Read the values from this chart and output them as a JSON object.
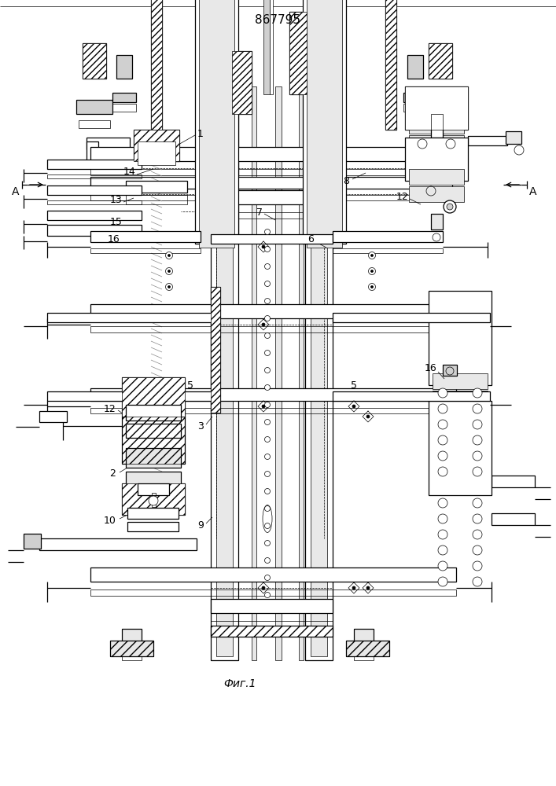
{
  "title": "867795",
  "caption": "Фиг.1",
  "bg_color": "#ffffff",
  "figsize": [
    7.07,
    10.0
  ],
  "dpi": 100,
  "title_fs": 11,
  "caption_fs": 10,
  "lw_thin": 0.5,
  "lw_med": 0.9,
  "lw_thick": 1.4,
  "lw_vthick": 2.0,
  "gray_light": "#e8e8e8",
  "gray_mid": "#d0d0d0",
  "gray_dark": "#a0a0a0",
  "hatch_color": "#555555"
}
